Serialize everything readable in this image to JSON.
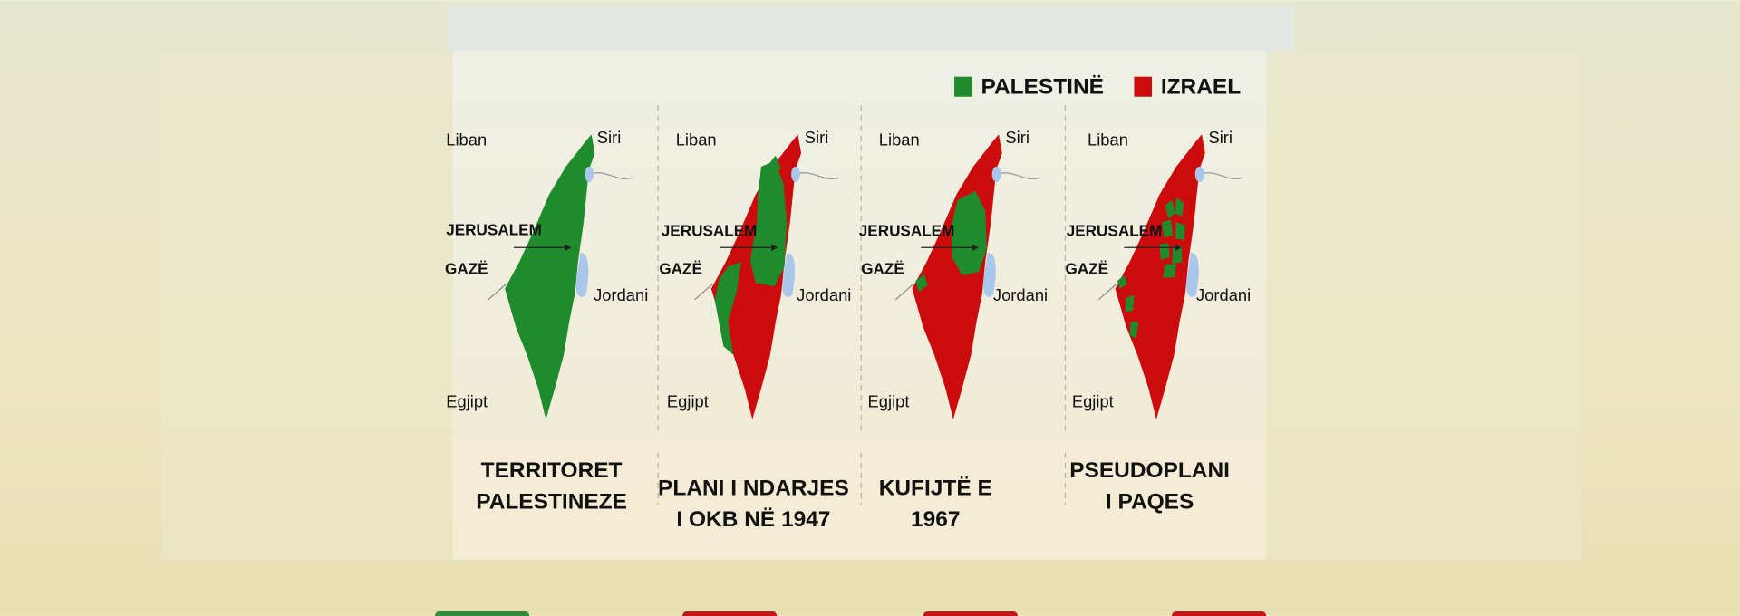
{
  "legend": [
    {
      "label": "PALESTINË",
      "color": "#1f8b2c"
    },
    {
      "label": "IZRAEL",
      "color": "#cc0c0c"
    }
  ],
  "panels": [
    {
      "labels": [
        "Liban",
        "Siri",
        "JERUSALEM",
        "GAZË",
        "Jordani",
        "Egjipt"
      ],
      "caption": [
        "TERRITORET",
        "PALESTINEZE"
      ]
    },
    {
      "labels": [
        "Liban",
        "Siri",
        "JERUSALEM",
        "GAZË",
        "Jordani",
        "Egjipt"
      ],
      "caption": [
        "PLANI I NDARJES",
        "I OKB NË 1947"
      ]
    },
    {
      "labels": [
        "Liban",
        "Siri",
        "JERUSALEM",
        "GAZË",
        "Jordani",
        "Egjipt"
      ],
      "caption": [
        "KUFIJTË E",
        "1967"
      ]
    },
    {
      "labels": [
        "Liban",
        "Siri",
        "JERUSALEM",
        "GAZË",
        "Jordani",
        "Egjipt"
      ],
      "caption": [
        "PSEUDOPLANI",
        "I PAQES"
      ]
    }
  ]
}
